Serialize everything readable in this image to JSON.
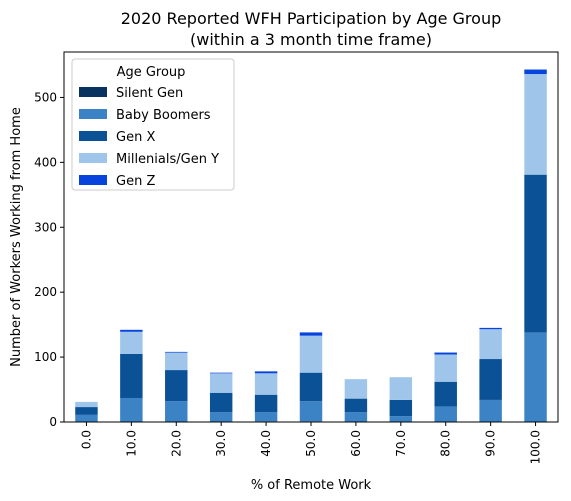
{
  "chart_data": {
    "type": "bar",
    "stacked": true,
    "title": [
      "2020 Reported WFH Participation by Age Group",
      "(within a 3 month time frame)"
    ],
    "xlabel": "% of Remote Work",
    "ylabel": "Number of Workers Working from Home",
    "categories": [
      "0.0",
      "10.0",
      "20.0",
      "30.0",
      "40.0",
      "50.0",
      "60.0",
      "70.0",
      "80.0",
      "90.0",
      "100.0"
    ],
    "ylim": [
      0,
      570
    ],
    "yticks": [
      0,
      100,
      200,
      300,
      400,
      500
    ],
    "grid": false,
    "legend": {
      "title": "Age Group",
      "placement": "top-left"
    },
    "series": [
      {
        "name": "Silent Gen",
        "color": "#08335e",
        "values": [
          0,
          0,
          0,
          0,
          1,
          1,
          0,
          0,
          0,
          0,
          0
        ]
      },
      {
        "name": "Baby Boomers",
        "color": "#3c83c6",
        "values": [
          11,
          37,
          32,
          15,
          14,
          31,
          15,
          9,
          24,
          34,
          138
        ]
      },
      {
        "name": "Gen X",
        "color": "#0b5195",
        "values": [
          12,
          68,
          48,
          30,
          27,
          44,
          21,
          25,
          38,
          63,
          243
        ]
      },
      {
        "name": "Millenials/Gen Y",
        "color": "#9fc5ea",
        "values": [
          8,
          34,
          27,
          30,
          33,
          57,
          30,
          35,
          42,
          46,
          155
        ]
      },
      {
        "name": "Gen Z",
        "color": "#0644dd",
        "values": [
          0,
          3,
          1,
          1,
          3,
          5,
          0,
          0,
          3,
          2,
          7
        ]
      }
    ]
  }
}
